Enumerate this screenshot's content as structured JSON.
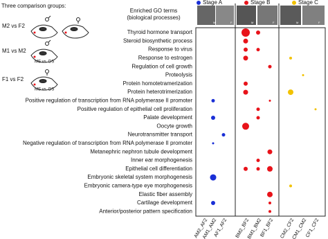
{
  "chart_data": {
    "type": "dotmatrix",
    "left_title": "Three comparison groups:",
    "groups": [
      "M2 vs F2",
      "M1 vs M2",
      "F1 vs F2"
    ],
    "group_notes": [
      "MS vs. DS",
      "MS vs. DS"
    ],
    "header": "Enriched GO terms (biological processes)",
    "photo_labels": [
      "M",
      "F",
      "M",
      "F",
      "M",
      "F"
    ],
    "series": [
      {
        "name": "Stage A",
        "color": "#1a2fd6"
      },
      {
        "name": "Stage B",
        "color": "#e8131a"
      },
      {
        "name": "Stage C",
        "color": "#f2c200"
      }
    ],
    "terms": [
      "Thyroid hormone transport",
      "Steroid biosynthetic process",
      "Response to virus",
      "Response to estrogen",
      "Regulation of cell growth",
      "Proteolysis",
      "Protein homotetramerization",
      "Protein heterotrimerization",
      "Positive regulation of transcription from RNA polymerase II promoter",
      "Positive regulation of epithelial cell proliferation",
      "Palate development",
      "Oocyte growth",
      "Neurotransmitter transport",
      "Negative regulation of transcription from RNA polymerase II promoter",
      "Metanephric nephron tubule development",
      "Inner ear morphogenesis",
      "Epithelial cell differentiation",
      "Embryonic skeletal system morphogenesis",
      "Embryonic camera-type eye morphogenesis",
      "Elastic fiber assembly",
      "Cartilage development",
      "Anterior/posterior pattern specification"
    ],
    "comparisons": [
      "AM2_AF2",
      "AM1_AM2",
      "AF1_AF2",
      "BM2_BF2",
      "BM1_BM2",
      "BF1_BF2",
      "CM2_CF2",
      "CM1_CM2",
      "CF1_CF2"
    ],
    "points": [
      {
        "row": 0,
        "col": 3,
        "size": 6
      },
      {
        "row": 0,
        "col": 4,
        "size": 3
      },
      {
        "row": 1,
        "col": 3,
        "size": 3.5
      },
      {
        "row": 2,
        "col": 3,
        "size": 3
      },
      {
        "row": 2,
        "col": 4,
        "size": 2.5
      },
      {
        "row": 3,
        "col": 3,
        "size": 3.5
      },
      {
        "row": 3,
        "col": 6,
        "size": 2
      },
      {
        "row": 4,
        "col": 5,
        "size": 2.5
      },
      {
        "row": 5,
        "col": 7,
        "size": 1.5
      },
      {
        "row": 6,
        "col": 3,
        "size": 3
      },
      {
        "row": 7,
        "col": 3,
        "size": 3.5
      },
      {
        "row": 7,
        "col": 6,
        "size": 4
      },
      {
        "row": 8,
        "col": 1,
        "size": 2.5
      },
      {
        "row": 8,
        "col": 5,
        "size": 1.5
      },
      {
        "row": 9,
        "col": 4,
        "size": 2.5
      },
      {
        "row": 9,
        "col": 8,
        "size": 1.5
      },
      {
        "row": 10,
        "col": 1,
        "size": 3
      },
      {
        "row": 10,
        "col": 4,
        "size": 2.5
      },
      {
        "row": 11,
        "col": 3,
        "size": 5
      },
      {
        "row": 12,
        "col": 2,
        "size": 2.5
      },
      {
        "row": 13,
        "col": 1,
        "size": 1.5
      },
      {
        "row": 14,
        "col": 5,
        "size": 3.5
      },
      {
        "row": 15,
        "col": 4,
        "size": 2.5
      },
      {
        "row": 16,
        "col": 3,
        "size": 3
      },
      {
        "row": 16,
        "col": 4,
        "size": 2.5
      },
      {
        "row": 16,
        "col": 5,
        "size": 4
      },
      {
        "row": 17,
        "col": 1,
        "size": 4.5
      },
      {
        "row": 18,
        "col": 6,
        "size": 2
      },
      {
        "row": 19,
        "col": 5,
        "size": 4
      },
      {
        "row": 20,
        "col": 1,
        "size": 3
      },
      {
        "row": 20,
        "col": 5,
        "size": 2
      },
      {
        "row": 21,
        "col": 5,
        "size": 2
      }
    ]
  }
}
